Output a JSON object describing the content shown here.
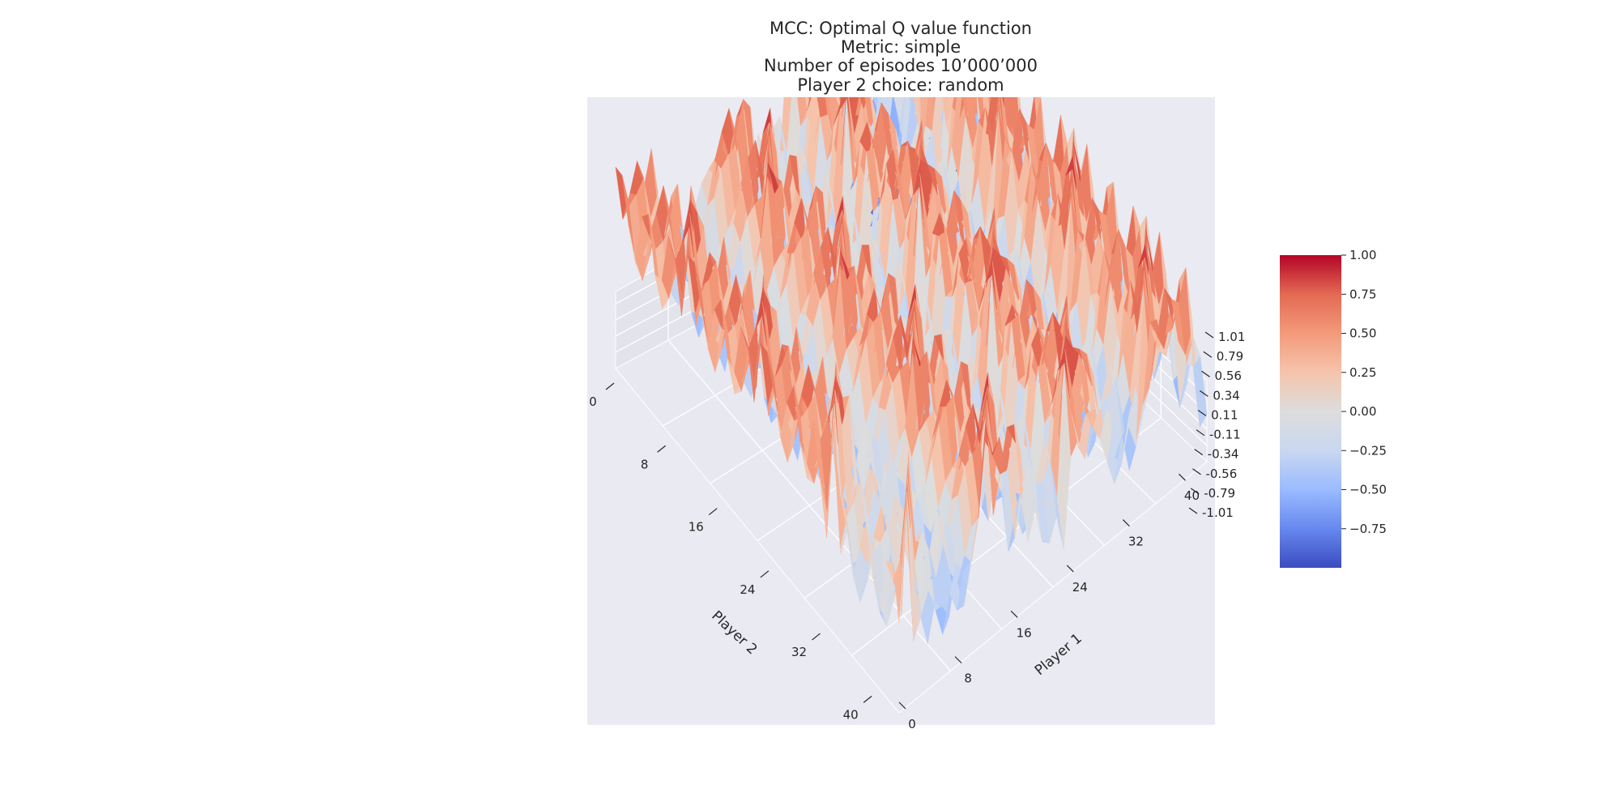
{
  "chart_data": {
    "type": "surface3d",
    "title_lines": [
      "MCC: Optimal Q value function",
      "Metric: simple",
      "Number of episodes 10’000’000",
      "Player 2 choice: random"
    ],
    "xlabel": "Player 2",
    "ylabel": "Player 1",
    "x_ticks": [
      "0",
      "8",
      "16",
      "24",
      "32",
      "40"
    ],
    "y_ticks": [
      "0",
      "8",
      "16",
      "24",
      "32",
      "40"
    ],
    "z_ticks": [
      "1.01",
      "0.79",
      "0.56",
      "0.34",
      "0.11",
      "-0.11",
      "-0.34",
      "-0.56",
      "-0.79",
      "-1.01"
    ],
    "zlim": [
      -1.01,
      1.01
    ],
    "colorbar": {
      "ticks": [
        "1.00",
        "0.75",
        "0.50",
        "0.25",
        "0.00",
        "−0.25",
        "−0.50",
        "−0.75"
      ],
      "tick_values": [
        1.0,
        0.75,
        0.5,
        0.25,
        0.0,
        -0.25,
        -0.5,
        -0.75
      ],
      "range": [
        -1.0,
        1.0
      ],
      "colormap": "coolwarm",
      "stops": [
        "#3b4cc0",
        "#6788ee",
        "#9abbff",
        "#c9d7f0",
        "#dddddd",
        "#f5c4ac",
        "#f49a7b",
        "#e36a53",
        "#b40426"
      ]
    },
    "grid": true,
    "pane_color": "#eaeaf2"
  }
}
